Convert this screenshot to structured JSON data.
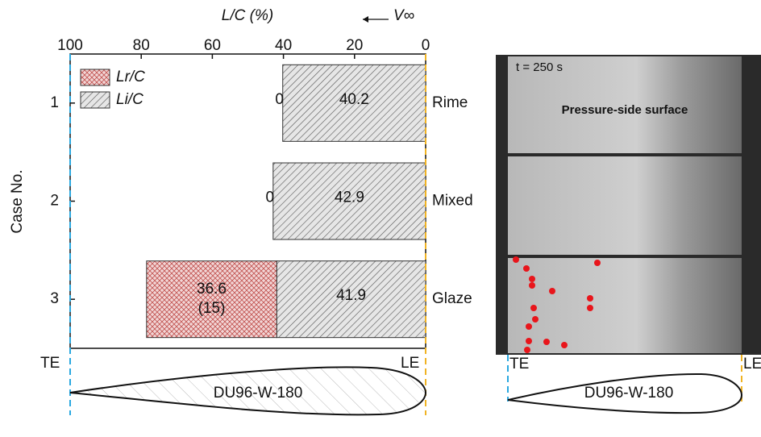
{
  "chart_data": {
    "type": "bar",
    "orientation": "horizontal",
    "stacked": true,
    "x_label": "L/C (%)",
    "y_label": "Case No.",
    "categories": [
      "1",
      "2",
      "3"
    ],
    "category_notes": [
      "Rime",
      "Mixed",
      "Glaze"
    ],
    "series": [
      {
        "name": "Lr/C",
        "color": "#c0504d",
        "values": [
          0,
          0,
          36.6
        ],
        "value_labels": [
          "0",
          "0",
          "36.6 (15)"
        ]
      },
      {
        "name": "Li/C",
        "color": "#555555",
        "values": [
          40.2,
          42.9,
          41.9
        ]
      }
    ],
    "xlim": [
      100,
      0
    ],
    "xticks": [
      100,
      80,
      60,
      40,
      20,
      0
    ],
    "flow_label": "V∞",
    "legend_position": "upper left"
  },
  "airfoil": {
    "name": "DU96-W-180",
    "trailing_edge": "TE",
    "leading_edge": "LE"
  },
  "photo": {
    "time_label": "t = 250 s",
    "surface_label": "Pressure-side surface",
    "airfoil_name": "DU96-W-180",
    "trailing_edge": "TE",
    "leading_edge": "LE"
  }
}
